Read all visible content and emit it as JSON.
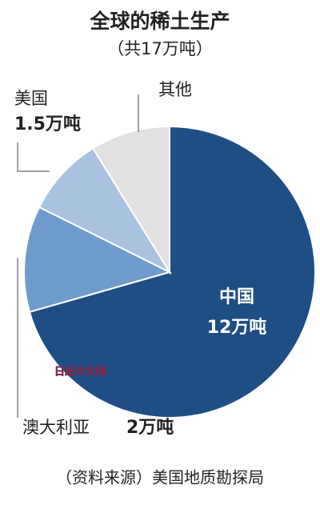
{
  "chart_data": {
    "type": "pie",
    "title": "全球的稀土生产",
    "subtitle": "（共17万吨）",
    "categories": [
      "中国",
      "澳大利亚",
      "美国",
      "其他"
    ],
    "values": [
      12,
      2,
      1.5,
      1.5
    ],
    "value_labels": [
      "12万吨",
      "2万吨",
      "1.5万吨",
      null
    ],
    "colors": [
      "#1f4e85",
      "#6f9bcc",
      "#a8c2e0",
      "#e1e1e1"
    ],
    "source": "（资料来源）美国地质勘探局",
    "watermark": "日经中文网"
  }
}
